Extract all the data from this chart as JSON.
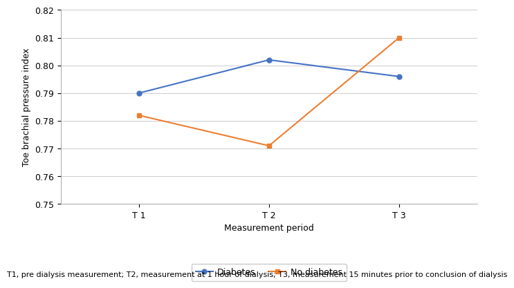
{
  "x_labels": [
    "T 1",
    "T 2",
    "T 3"
  ],
  "x_positions": [
    0,
    1,
    2
  ],
  "diabetes_values": [
    0.79,
    0.802,
    0.796
  ],
  "no_diabetes_values": [
    0.782,
    0.771,
    0.81
  ],
  "diabetes_color": "#4472C4",
  "no_diabetes_color": "#ED7D31",
  "ylabel": "Toe brachial pressure index",
  "xlabel": "Measurement period",
  "ylim_min": 0.75,
  "ylim_max": 0.82,
  "yticks": [
    0.75,
    0.76,
    0.77,
    0.78,
    0.79,
    0.8,
    0.81,
    0.82
  ],
  "legend_labels": [
    "Diabetes",
    "No diabetes"
  ],
  "caption": "T1, pre dialysis measurement; T2, measurement at 1 hour of dialysis; T3, measurement 15 minutes prior to conclusion of dialysis",
  "diabetes_marker": "o",
  "no_diabetes_marker": "s",
  "marker_size": 5,
  "line_width": 1.5,
  "background_color": "#FFFFFF",
  "grid_color": "#CCCCCC",
  "axis_label_fontsize": 9,
  "tick_fontsize": 9,
  "legend_fontsize": 9,
  "caption_fontsize": 8
}
